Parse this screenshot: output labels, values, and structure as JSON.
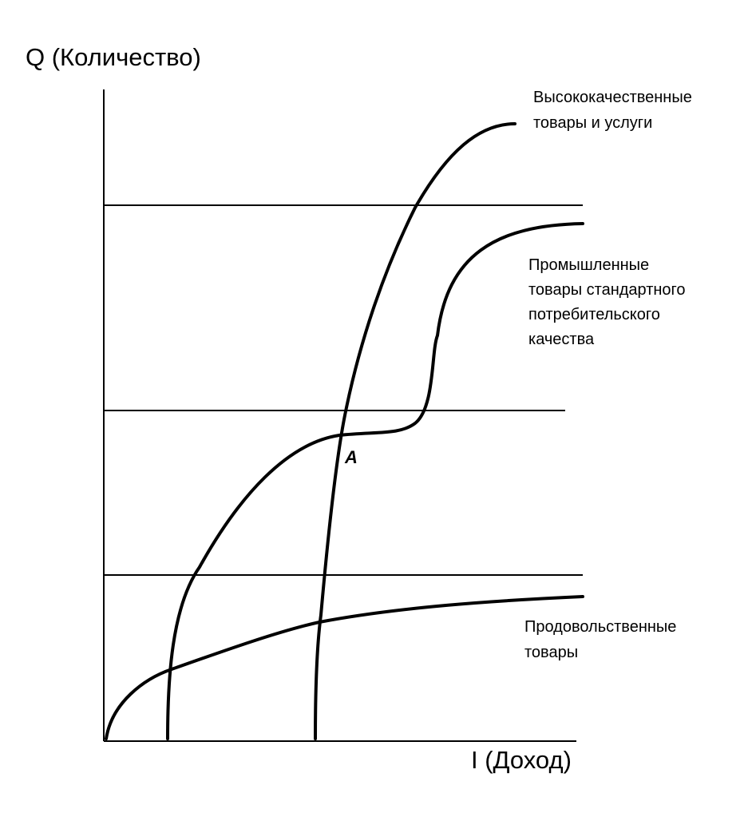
{
  "axes": {
    "y_label": "Q (Количество)",
    "x_label": "I (Доход)"
  },
  "curves": [
    {
      "label_lines": [
        "Высококачественные",
        "товары и услуги"
      ]
    },
    {
      "label_lines": [
        "Промышленные",
        "товары стандартного",
        "потребительского",
        "качества"
      ]
    },
    {
      "label_lines": [
        "Продовольственные",
        "товары"
      ]
    }
  ],
  "point": {
    "label": "A"
  }
}
